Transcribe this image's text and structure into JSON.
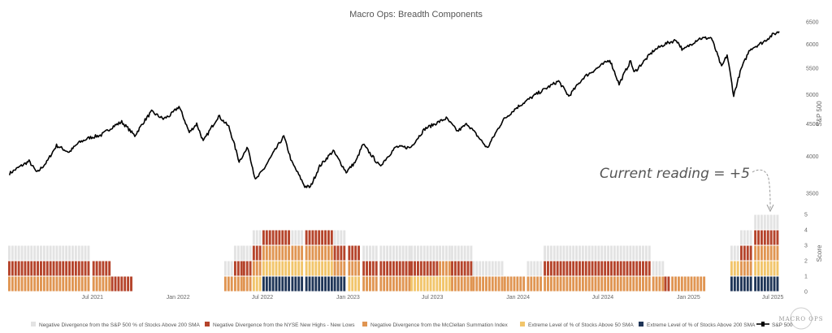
{
  "chart_data": {
    "type": "line",
    "title": "Macro Ops: Breadth Components",
    "annotation": "Current reading = +5",
    "watermark": "MACRO OPS",
    "price_axis": {
      "label": "S&P 500",
      "range": [
        3400,
        6500
      ],
      "ticks": [
        6500,
        6000,
        5500,
        5000,
        4500,
        4000,
        3500
      ]
    },
    "score_axis": {
      "label": "Score",
      "range": [
        0,
        5
      ],
      "ticks": [
        5,
        4,
        3,
        2,
        1,
        0
      ]
    },
    "x_axis": {
      "range": [
        "2021-01-01",
        "2025-07-20"
      ],
      "ticks": [
        {
          "date": "2021-07-01",
          "label": "Jul 2021"
        },
        {
          "date": "2022-01-01",
          "label": "Jan 2022"
        },
        {
          "date": "2022-07-01",
          "label": "Jul 2022"
        },
        {
          "date": "2023-01-01",
          "label": "Jan 2023"
        },
        {
          "date": "2023-07-01",
          "label": "Jul 2023"
        },
        {
          "date": "2024-01-01",
          "label": "Jan 2024"
        },
        {
          "date": "2024-07-01",
          "label": "Jul 2024"
        },
        {
          "date": "2025-01-01",
          "label": "Jan 2025"
        },
        {
          "date": "2025-07-01",
          "label": "Jul 2025"
        }
      ]
    },
    "components": [
      {
        "name": "Negative Divergence from the S&P 500 % of Stocks Above 200 SMA",
        "color": "#e3e3e3"
      },
      {
        "name": "Negative Divergence from the NYSE New Highs - New Lows",
        "color": "#b5442b"
      },
      {
        "name": "Negative Divergence from the McClellan Summation Index",
        "color": "#e09552"
      },
      {
        "name": "Extreme Level of % of Stocks Above 50 SMA",
        "color": "#f2c56b"
      },
      {
        "name": "Extreme Level of % of Stocks Above 200 SMA",
        "color": "#1f3557"
      }
    ],
    "series_line": {
      "name": "S&P 500",
      "color": "#000000",
      "points": [
        [
          "2021-01-04",
          3760
        ],
        [
          "2021-01-25",
          3850
        ],
        [
          "2021-02-15",
          3930
        ],
        [
          "2021-03-04",
          3770
        ],
        [
          "2021-03-25",
          3920
        ],
        [
          "2021-04-15",
          4160
        ],
        [
          "2021-05-12",
          4060
        ],
        [
          "2021-06-01",
          4200
        ],
        [
          "2021-06-25",
          4280
        ],
        [
          "2021-07-20",
          4320
        ],
        [
          "2021-08-15",
          4460
        ],
        [
          "2021-09-02",
          4530
        ],
        [
          "2021-09-30",
          4310
        ],
        [
          "2021-10-20",
          4540
        ],
        [
          "2021-11-05",
          4700
        ],
        [
          "2021-11-30",
          4580
        ],
        [
          "2021-12-15",
          4640
        ],
        [
          "2022-01-03",
          4790
        ],
        [
          "2022-01-25",
          4360
        ],
        [
          "2022-02-10",
          4500
        ],
        [
          "2022-02-24",
          4220
        ],
        [
          "2022-03-29",
          4630
        ],
        [
          "2022-04-20",
          4450
        ],
        [
          "2022-05-12",
          3930
        ],
        [
          "2022-05-31",
          4130
        ],
        [
          "2022-06-16",
          3670
        ],
        [
          "2022-07-05",
          3830
        ],
        [
          "2022-08-16",
          4300
        ],
        [
          "2022-09-02",
          3920
        ],
        [
          "2022-09-30",
          3590
        ],
        [
          "2022-10-12",
          3580
        ],
        [
          "2022-11-01",
          3860
        ],
        [
          "2022-11-30",
          4080
        ],
        [
          "2022-12-28",
          3780
        ],
        [
          "2023-01-18",
          3930
        ],
        [
          "2023-02-02",
          4180
        ],
        [
          "2023-03-10",
          3860
        ],
        [
          "2023-04-14",
          4140
        ],
        [
          "2023-05-15",
          4130
        ],
        [
          "2023-06-15",
          4420
        ],
        [
          "2023-07-31",
          4590
        ],
        [
          "2023-08-24",
          4380
        ],
        [
          "2023-09-14",
          4500
        ],
        [
          "2023-10-27",
          4120
        ],
        [
          "2023-11-30",
          4560
        ],
        [
          "2023-12-29",
          4770
        ],
        [
          "2024-02-08",
          5000
        ],
        [
          "2024-03-28",
          5250
        ],
        [
          "2024-04-19",
          4970
        ],
        [
          "2024-05-21",
          5320
        ],
        [
          "2024-07-16",
          5670
        ],
        [
          "2024-08-05",
          5190
        ],
        [
          "2024-08-30",
          5650
        ],
        [
          "2024-09-06",
          5410
        ],
        [
          "2024-10-18",
          5860
        ],
        [
          "2024-11-11",
          6000
        ],
        [
          "2024-12-06",
          6090
        ],
        [
          "2024-12-20",
          5870
        ],
        [
          "2025-01-23",
          6120
        ],
        [
          "2025-02-19",
          6140
        ],
        [
          "2025-03-13",
          5520
        ],
        [
          "2025-03-25",
          5770
        ],
        [
          "2025-04-08",
          4980
        ],
        [
          "2025-04-24",
          5480
        ],
        [
          "2025-05-13",
          5890
        ],
        [
          "2025-06-10",
          6040
        ],
        [
          "2025-06-30",
          6200
        ],
        [
          "2025-07-15",
          6280
        ]
      ]
    },
    "score_bars": [
      {
        "start": "2021-01-01",
        "end": "2021-07-01",
        "counts": [
          1,
          1,
          1,
          0,
          0
        ]
      },
      {
        "start": "2021-07-01",
        "end": "2021-08-10",
        "counts": [
          0,
          1,
          1,
          0,
          0
        ]
      },
      {
        "start": "2021-08-10",
        "end": "2021-09-25",
        "counts": [
          0,
          1,
          0,
          0,
          0
        ]
      },
      {
        "start": "2022-04-10",
        "end": "2022-05-01",
        "counts": [
          1,
          0,
          1,
          0,
          0
        ]
      },
      {
        "start": "2022-05-01",
        "end": "2022-05-20",
        "counts": [
          1,
          1,
          1,
          0,
          0
        ]
      },
      {
        "start": "2022-05-20",
        "end": "2022-06-10",
        "counts": [
          1,
          1,
          1,
          0,
          0
        ]
      },
      {
        "start": "2022-06-10",
        "end": "2022-07-01",
        "counts": [
          1,
          1,
          1,
          1,
          0
        ]
      },
      {
        "start": "2022-07-01",
        "end": "2022-09-01",
        "counts": [
          0,
          1,
          1,
          1,
          1
        ]
      },
      {
        "start": "2022-09-01",
        "end": "2022-10-01",
        "counts": [
          1,
          0,
          1,
          1,
          1
        ]
      },
      {
        "start": "2022-10-01",
        "end": "2022-12-01",
        "counts": [
          0,
          1,
          1,
          1,
          1
        ]
      },
      {
        "start": "2022-12-01",
        "end": "2023-01-01",
        "counts": [
          1,
          1,
          1,
          0,
          1
        ]
      },
      {
        "start": "2023-01-01",
        "end": "2023-02-01",
        "counts": [
          0,
          1,
          1,
          1,
          0
        ]
      },
      {
        "start": "2023-02-01",
        "end": "2023-03-10",
        "counts": [
          1,
          1,
          1,
          0,
          0
        ]
      },
      {
        "start": "2023-03-10",
        "end": "2023-05-15",
        "counts": [
          1,
          1,
          1,
          0,
          0
        ]
      },
      {
        "start": "2023-05-15",
        "end": "2023-07-15",
        "counts": [
          1,
          1,
          0,
          1,
          0
        ]
      },
      {
        "start": "2023-07-15",
        "end": "2023-08-10",
        "counts": [
          1,
          0,
          1,
          1,
          0
        ]
      },
      {
        "start": "2023-08-10",
        "end": "2023-09-25",
        "counts": [
          1,
          1,
          1,
          0,
          0
        ]
      },
      {
        "start": "2023-09-25",
        "end": "2023-12-01",
        "counts": [
          1,
          0,
          1,
          0,
          0
        ]
      },
      {
        "start": "2023-12-01",
        "end": "2024-01-20",
        "counts": [
          0,
          0,
          1,
          0,
          0
        ]
      },
      {
        "start": "2024-01-20",
        "end": "2024-02-25",
        "counts": [
          1,
          0,
          1,
          0,
          0
        ]
      },
      {
        "start": "2024-02-25",
        "end": "2024-10-15",
        "counts": [
          1,
          1,
          1,
          0,
          0
        ]
      },
      {
        "start": "2024-10-15",
        "end": "2024-11-10",
        "counts": [
          1,
          0,
          1,
          0,
          0
        ]
      },
      {
        "start": "2024-11-10",
        "end": "2024-11-25",
        "counts": [
          0,
          1,
          0,
          0,
          0
        ]
      },
      {
        "start": "2024-11-25",
        "end": "2025-02-10",
        "counts": [
          0,
          0,
          1,
          0,
          0
        ]
      },
      {
        "start": "2025-04-01",
        "end": "2025-04-22",
        "counts": [
          1,
          0,
          0,
          1,
          1
        ]
      },
      {
        "start": "2025-04-22",
        "end": "2025-05-22",
        "counts": [
          1,
          1,
          1,
          0,
          1
        ]
      },
      {
        "start": "2025-05-22",
        "end": "2025-07-15",
        "counts": [
          1,
          1,
          1,
          1,
          1
        ]
      }
    ],
    "legend_position": "bottom",
    "grid": false
  }
}
